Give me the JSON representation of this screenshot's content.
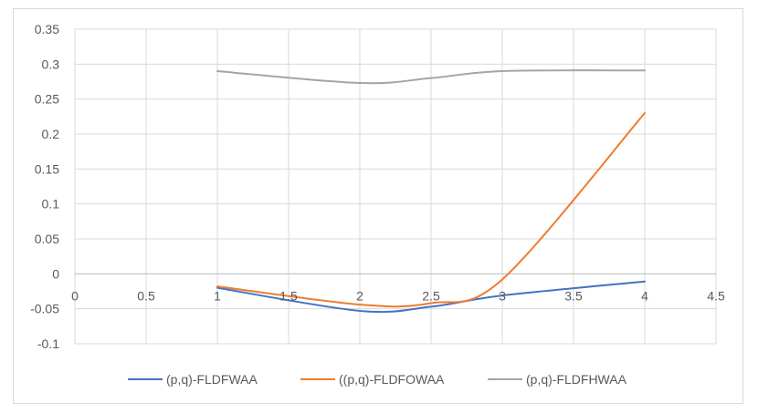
{
  "chart_data": {
    "type": "line",
    "title": "",
    "xlabel": "",
    "ylabel": "",
    "xlim": [
      0,
      4.5
    ],
    "ylim": [
      -0.1,
      0.35
    ],
    "x_ticks": [
      0,
      0.5,
      1,
      1.5,
      2,
      2.5,
      3,
      3.5,
      4,
      4.5
    ],
    "y_ticks": [
      -0.1,
      -0.05,
      0,
      0.05,
      0.1,
      0.15,
      0.2,
      0.25,
      0.3,
      0.35
    ],
    "x_tick_labels": [
      "0",
      "0.5",
      "1",
      "1.5",
      "2",
      "2.5",
      "3",
      "3.5",
      "4",
      "4.5"
    ],
    "y_tick_labels": [
      "-0.1",
      "-0.05",
      "0",
      "0.05",
      "0.1",
      "0.15",
      "0.2",
      "0.25",
      "0.3",
      "0.35"
    ],
    "grid": true,
    "legend": "bottom",
    "smooth": true,
    "x": [
      1,
      2,
      2.5,
      3,
      4
    ],
    "series": [
      {
        "name": "(p,q)-FLDFWAA",
        "color": "#4472c4",
        "values": [
          -0.02,
          -0.053,
          -0.047,
          -0.031,
          -0.011
        ]
      },
      {
        "name": "((p,q)-FLDFOWAA",
        "color": "#ed7d31",
        "values": [
          -0.018,
          -0.044,
          -0.042,
          -0.008,
          0.23
        ]
      },
      {
        "name": "(p,q)-FLDFHWAA",
        "color": "#a5a5a5",
        "values": [
          0.29,
          0.273,
          0.28,
          0.29,
          0.291
        ]
      }
    ]
  }
}
